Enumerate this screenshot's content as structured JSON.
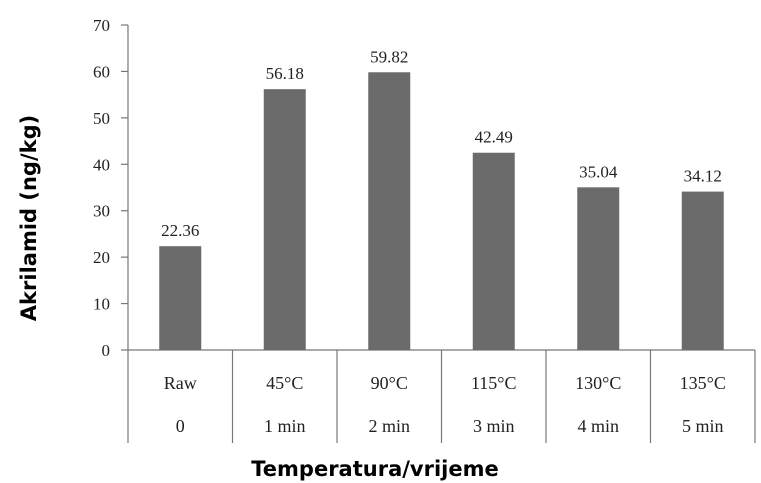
{
  "chart_data": {
    "type": "bar",
    "categories": [
      [
        "Raw",
        "0"
      ],
      [
        "45°C",
        "1 min"
      ],
      [
        "90°C",
        "2 min"
      ],
      [
        "115°C",
        "3 min"
      ],
      [
        "130°C",
        "4 min"
      ],
      [
        "135°C",
        "5 min"
      ]
    ],
    "values": [
      22.36,
      56.18,
      59.82,
      42.49,
      35.04,
      34.12
    ],
    "value_labels": [
      "22.36",
      "56.18",
      "59.82",
      "42.49",
      "35.04",
      "34.12"
    ],
    "title": "",
    "xlabel": "Temperatura/vrijeme",
    "ylabel": "Akrilamid (ng/kg)",
    "ylim": [
      0,
      70
    ],
    "yticks": [
      0,
      10,
      20,
      30,
      40,
      50,
      60,
      70
    ],
    "grid": false,
    "legend": "none",
    "bar_color": "#6b6b6b"
  }
}
